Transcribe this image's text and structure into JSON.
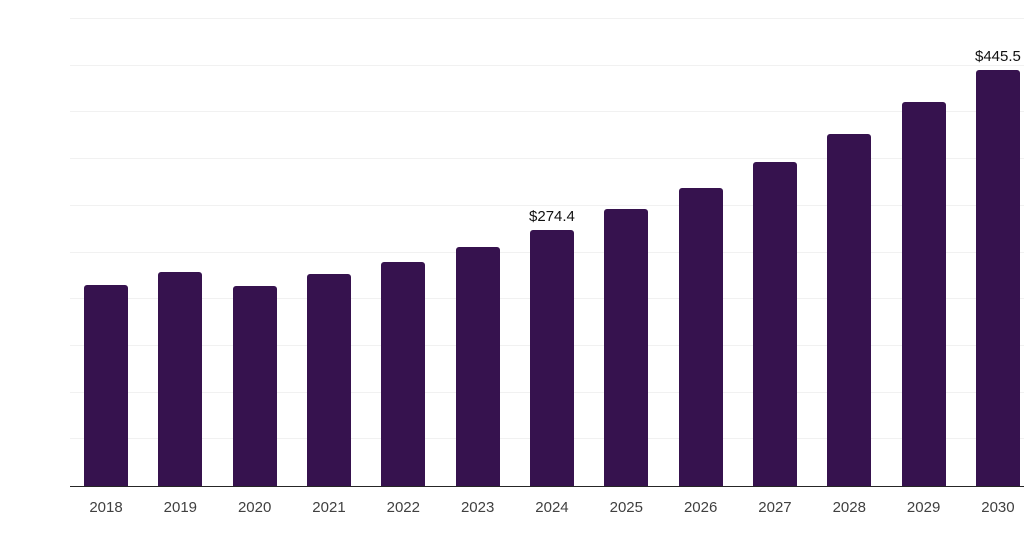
{
  "chart_data": {
    "type": "bar",
    "title": "",
    "xlabel": "",
    "ylabel": "",
    "categories": [
      "2018",
      "2019",
      "2020",
      "2021",
      "2022",
      "2023",
      "2024",
      "2025",
      "2026",
      "2027",
      "2028",
      "2029",
      "2030"
    ],
    "values": [
      215.1,
      228.9,
      214.6,
      226.8,
      239.9,
      255.9,
      274.4,
      296.3,
      319.0,
      346.8,
      377.2,
      411.3,
      445.5
    ],
    "data_labels": [
      "",
      "",
      "",
      "",
      "",
      "",
      "$274.4",
      "",
      "",
      "",
      "",
      "",
      "$445.5"
    ],
    "ylim": [
      0,
      500
    ],
    "gridline_step": 50,
    "grid": "horizontal",
    "y_axis_tick_labels_visible": false,
    "legend": "none",
    "colors": {
      "bar": "#36124E",
      "background": "#ffffff",
      "gridline": "#f1f1f1",
      "axis_line": "#262626",
      "x_tick_label": "#404040",
      "data_label": "#111111"
    }
  }
}
